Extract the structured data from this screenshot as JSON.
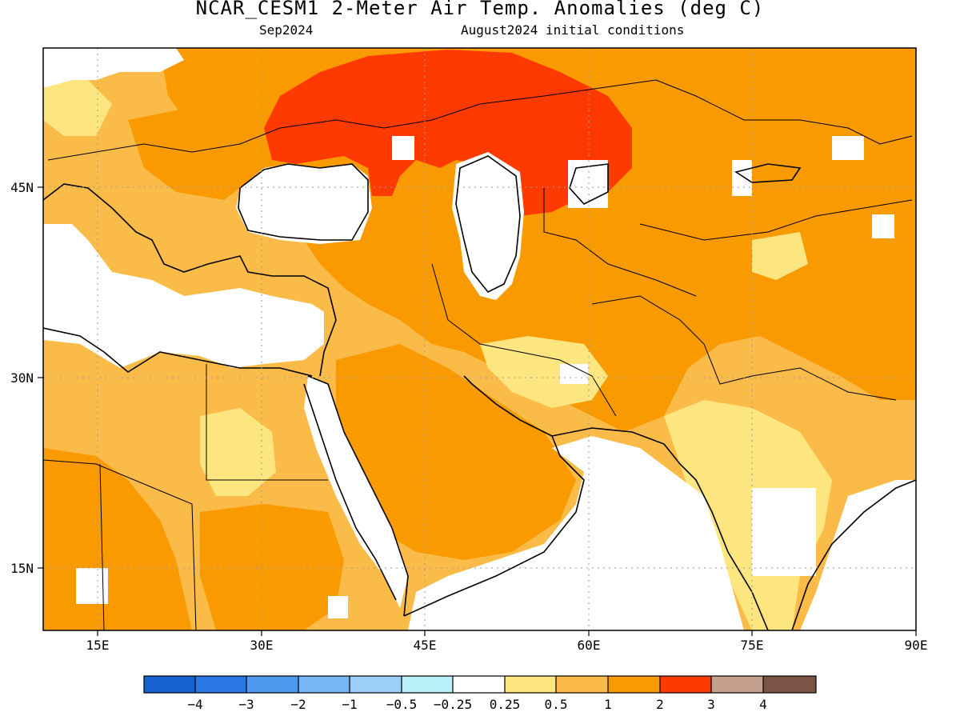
{
  "map": {
    "title": "NCAR_CESM1 2-Meter Air Temp. Anomalies (deg C)",
    "valid_month": "Sep2024",
    "init_conditions": "August2024 initial conditions",
    "lon_ticks": [
      "15E",
      "30E",
      "45E",
      "60E",
      "75E",
      "90E"
    ],
    "lat_ticks": [
      "45N",
      "30N",
      "15N"
    ],
    "legend": {
      "colors": [
        "#1660d0",
        "#2a78e6",
        "#4f98f0",
        "#77b5f5",
        "#9ccef8",
        "#b8f0f6",
        "#ffffff",
        "#fde680",
        "#fbbb48",
        "#f99a00",
        "#ff3a00",
        "#c5a08e",
        "#7a5546"
      ],
      "labels": [
        "−4",
        "−3",
        "−2",
        "−1",
        "−0.5",
        "−0.25",
        "0.25",
        "0.5",
        "1",
        "2",
        "3",
        "4"
      ]
    },
    "palette": {
      "near_zero": "#ffffff",
      "light_warm": "#fde680",
      "warm": "#fbbb48",
      "warmer": "#f99a00",
      "hot": "#ff3a00"
    }
  }
}
